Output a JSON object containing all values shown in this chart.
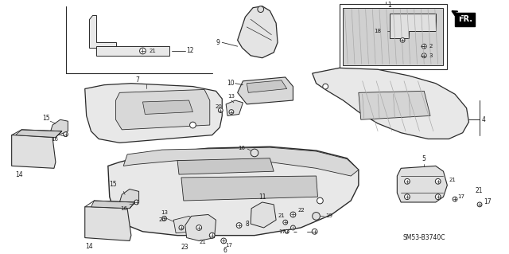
{
  "bg_color": "#ffffff",
  "line_color": "#2a2a2a",
  "text_color": "#1a1a1a",
  "fig_width": 6.4,
  "fig_height": 3.19,
  "dpi": 100,
  "diagram_label": "SM53-B3740C"
}
